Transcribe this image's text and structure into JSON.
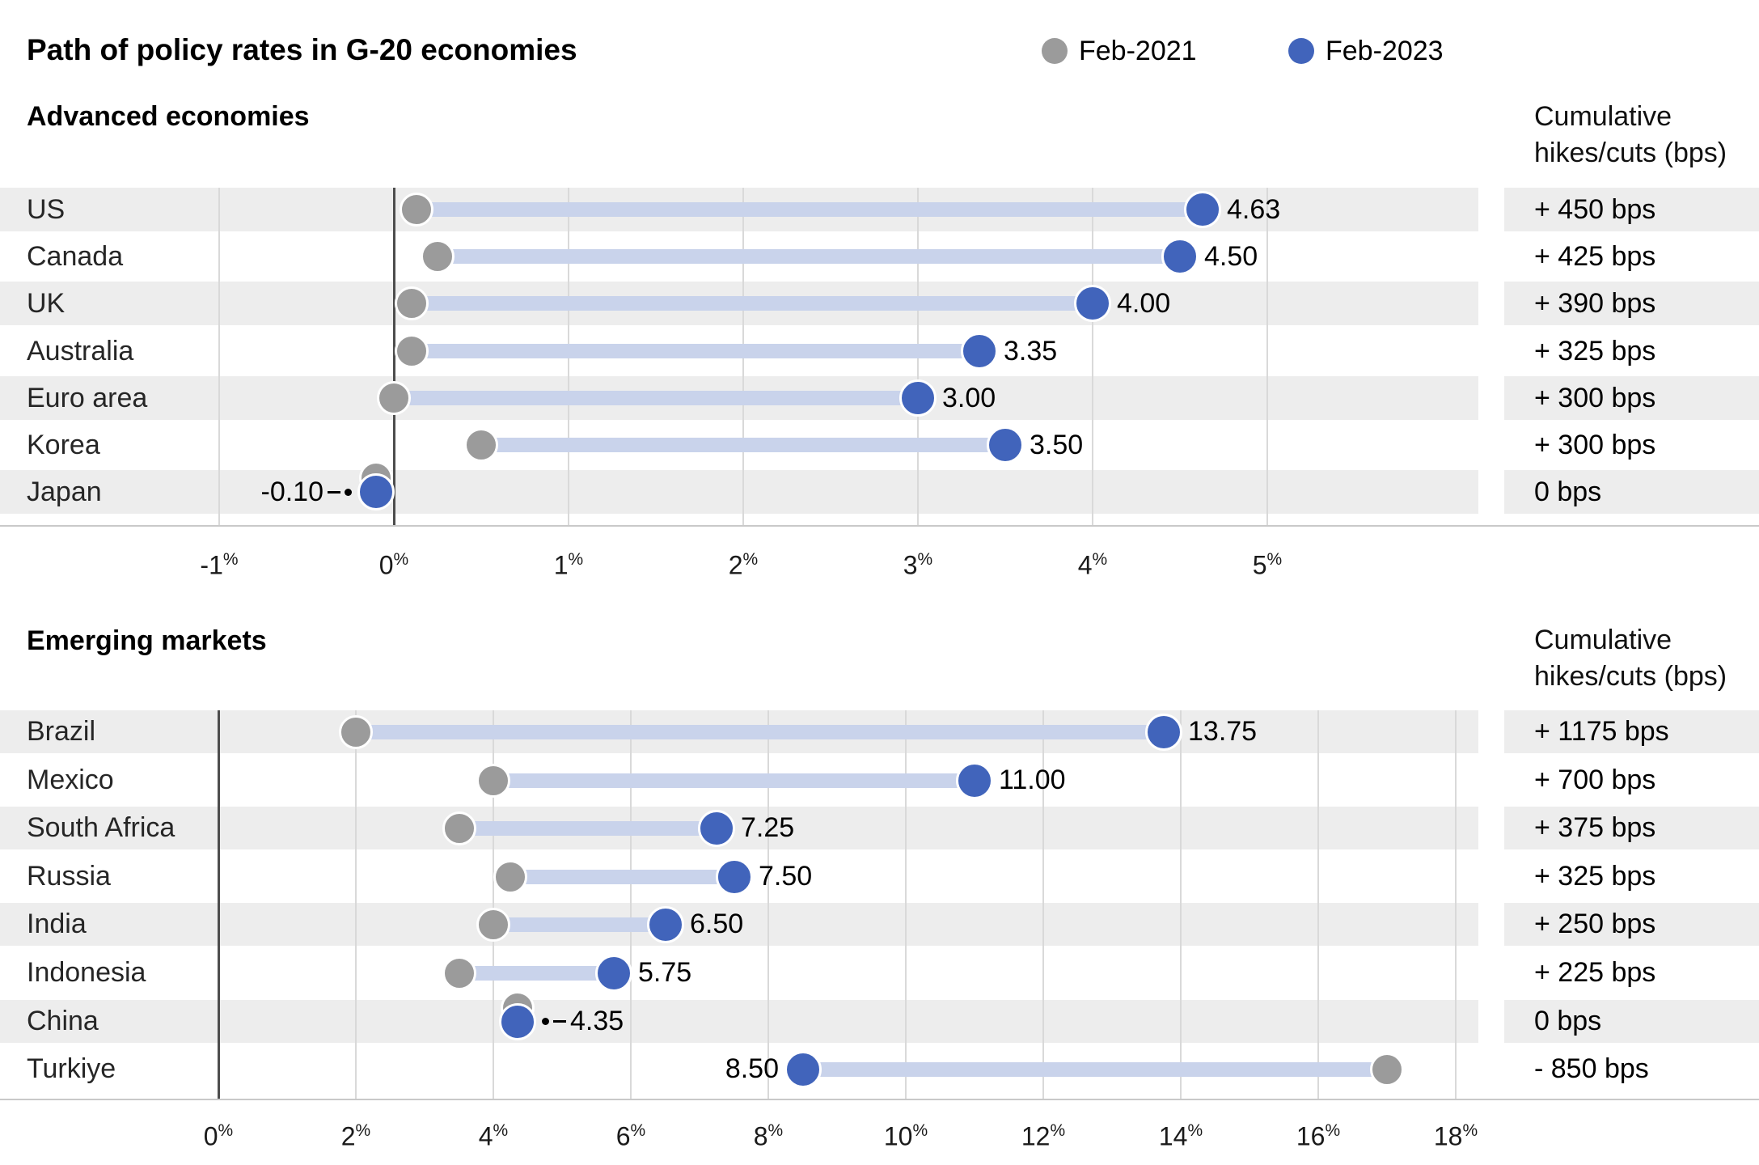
{
  "title": "Path of policy rates in G-20 economies",
  "legend": {
    "items": [
      {
        "label": "Feb-2021",
        "color": "#9b9b9b"
      },
      {
        "label": "Feb-2023",
        "color": "#4164bb"
      }
    ]
  },
  "right_column": {
    "header_line1": "Cumulative",
    "header_line2": "hikes/cuts (bps)"
  },
  "colors": {
    "feb_2021_marker": "#9b9b9b",
    "feb_2023_marker": "#4164bb",
    "connector_bar": "#c9d3eb",
    "row_stripe": "#ededed"
  },
  "chart_data": [
    {
      "type": "dumbbell",
      "section": "Advanced economies",
      "unit": "%",
      "series_names": [
        "Feb-2021",
        "Feb-2023"
      ],
      "axis": {
        "min": -1,
        "max": 5,
        "step": 1,
        "ticks": [
          -1,
          0,
          1,
          2,
          3,
          4,
          5
        ]
      },
      "rows": [
        {
          "country": "US",
          "feb_2021": 0.13,
          "feb_2023": 4.63,
          "value_label": "4.63",
          "cumulative": "+ 450 bps",
          "label_side": "right",
          "leader": false
        },
        {
          "country": "Canada",
          "feb_2021": 0.25,
          "feb_2023": 4.5,
          "value_label": "4.50",
          "cumulative": "+ 425 bps",
          "label_side": "right",
          "leader": false
        },
        {
          "country": "UK",
          "feb_2021": 0.1,
          "feb_2023": 4.0,
          "value_label": "4.00",
          "cumulative": "+ 390 bps",
          "label_side": "right",
          "leader": false
        },
        {
          "country": "Australia",
          "feb_2021": 0.1,
          "feb_2023": 3.35,
          "value_label": "3.35",
          "cumulative": "+ 325 bps",
          "label_side": "right",
          "leader": false
        },
        {
          "country": "Euro area",
          "feb_2021": 0.0,
          "feb_2023": 3.0,
          "value_label": "3.00",
          "cumulative": "+ 300 bps",
          "label_side": "right",
          "leader": false
        },
        {
          "country": "Korea",
          "feb_2021": 0.5,
          "feb_2023": 3.5,
          "value_label": "3.50",
          "cumulative": "+ 300 bps",
          "label_side": "right",
          "leader": false
        },
        {
          "country": "Japan",
          "feb_2021": -0.1,
          "feb_2023": -0.1,
          "value_label": "-0.10",
          "cumulative": "0 bps",
          "label_side": "left",
          "leader": true
        }
      ]
    },
    {
      "type": "dumbbell",
      "section": "Emerging markets",
      "unit": "%",
      "series_names": [
        "Feb-2021",
        "Feb-2023"
      ],
      "axis": {
        "min": 0,
        "max": 18,
        "step": 2,
        "ticks": [
          0,
          2,
          4,
          6,
          8,
          10,
          12,
          14,
          16,
          18
        ]
      },
      "rows": [
        {
          "country": "Brazil",
          "feb_2021": 2.0,
          "feb_2023": 13.75,
          "value_label": "13.75",
          "cumulative": "+ 1175 bps",
          "label_side": "right",
          "leader": false
        },
        {
          "country": "Mexico",
          "feb_2021": 4.0,
          "feb_2023": 11.0,
          "value_label": "11.00",
          "cumulative": "+ 700 bps",
          "label_side": "right",
          "leader": false
        },
        {
          "country": "South Africa",
          "feb_2021": 3.5,
          "feb_2023": 7.25,
          "value_label": "7.25",
          "cumulative": "+ 375 bps",
          "label_side": "right",
          "leader": false
        },
        {
          "country": "Russia",
          "feb_2021": 4.25,
          "feb_2023": 7.5,
          "value_label": "7.50",
          "cumulative": "+ 325 bps",
          "label_side": "right",
          "leader": false
        },
        {
          "country": "India",
          "feb_2021": 4.0,
          "feb_2023": 6.5,
          "value_label": "6.50",
          "cumulative": "+ 250 bps",
          "label_side": "right",
          "leader": false
        },
        {
          "country": "Indonesia",
          "feb_2021": 3.5,
          "feb_2023": 5.75,
          "value_label": "5.75",
          "cumulative": "+ 225 bps",
          "label_side": "right",
          "leader": false
        },
        {
          "country": "China",
          "feb_2021": 4.35,
          "feb_2023": 4.35,
          "value_label": "4.35",
          "cumulative": "0 bps",
          "label_side": "right",
          "leader": true
        },
        {
          "country": "Turkiye",
          "feb_2021": 17.0,
          "feb_2023": 8.5,
          "value_label": "8.50",
          "cumulative": "- 850 bps",
          "label_side": "left",
          "leader": false
        }
      ]
    }
  ]
}
